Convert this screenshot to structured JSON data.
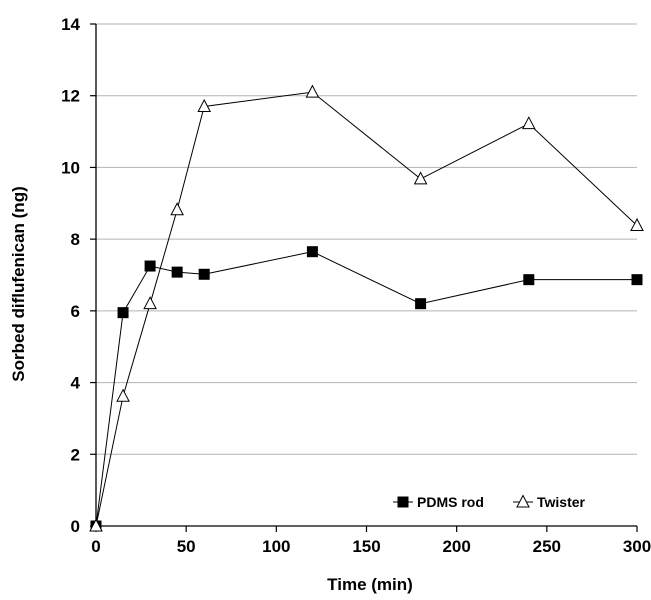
{
  "chart_data": {
    "type": "line",
    "title": "",
    "xlabel": "Time (min)",
    "ylabel": "Sorbed diflufenican (ng)",
    "xlim": [
      0,
      300
    ],
    "ylim": [
      0,
      14
    ],
    "xticks": [
      0,
      50,
      100,
      150,
      200,
      250,
      300
    ],
    "yticks": [
      0,
      2,
      4,
      6,
      8,
      10,
      12,
      14
    ],
    "grid": "horizontal",
    "legend_position": "bottom-right",
    "series": [
      {
        "name": "PDMS rod",
        "marker": "filled-square",
        "color": "#000000",
        "x": [
          0,
          15,
          30,
          45,
          60,
          120,
          180,
          240,
          300
        ],
        "y": [
          0,
          5.95,
          7.25,
          7.08,
          7.02,
          7.65,
          6.2,
          6.87,
          6.87
        ]
      },
      {
        "name": "Twister",
        "marker": "open-triangle",
        "color": "#000000",
        "x": [
          0,
          15,
          30,
          45,
          60,
          120,
          180,
          240,
          300
        ],
        "y": [
          0,
          3.62,
          6.2,
          8.82,
          11.7,
          12.1,
          9.68,
          11.22,
          8.38
        ]
      }
    ]
  }
}
